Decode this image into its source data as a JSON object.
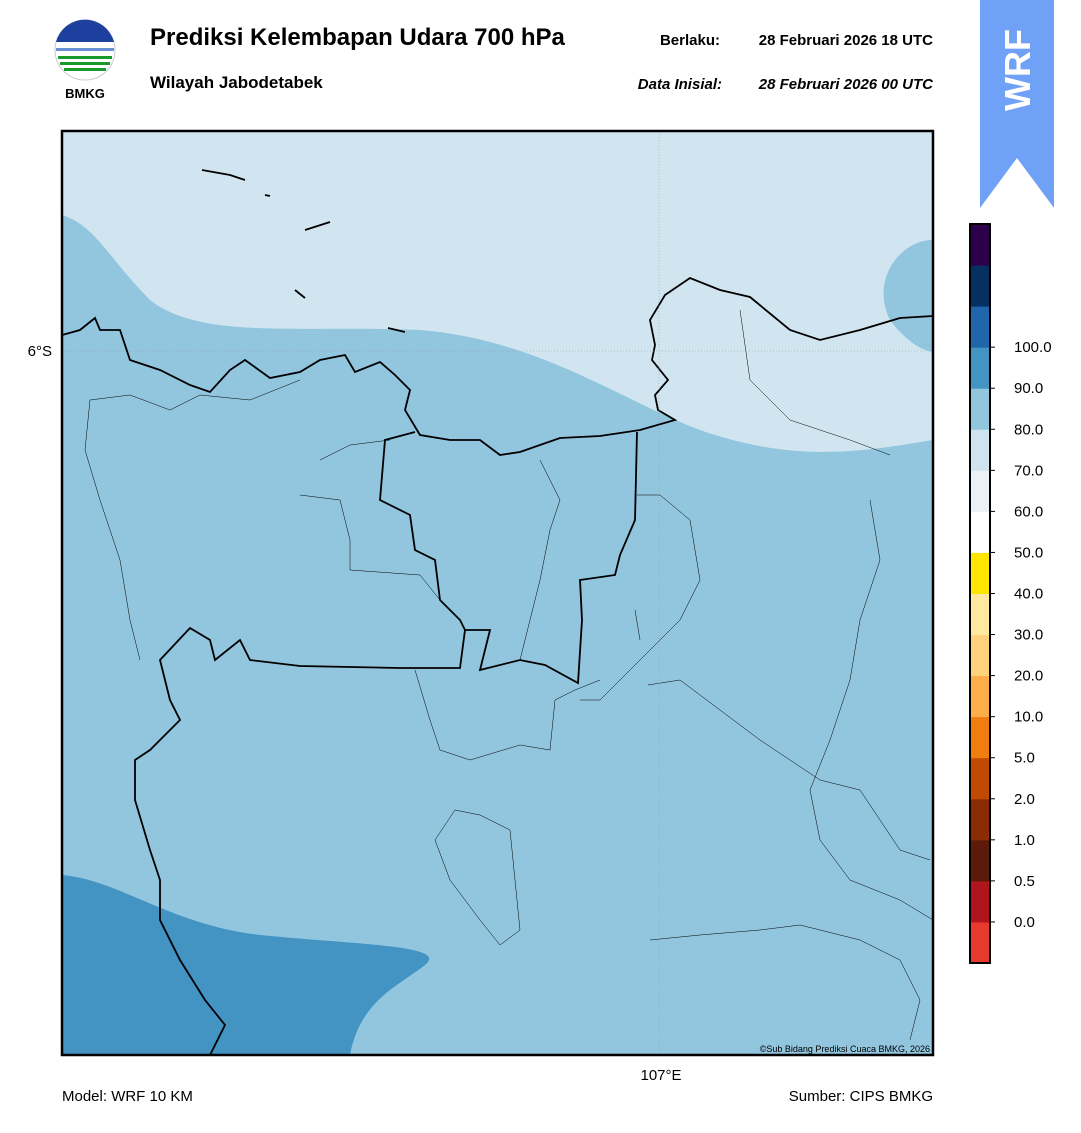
{
  "header": {
    "title": "Prediksi Kelembapan Udara 700 hPa",
    "subtitle": "Wilayah Jabodetabek",
    "valid_label": "Berlaku:",
    "valid": "28 Februari 2026 18 UTC",
    "init_label": "Data Inisial:",
    "init": "28 Februari 2026 00 UTC",
    "logo": "BMKG"
  },
  "badge": "WRF",
  "map": {
    "lat_label": "6°S",
    "lon_label": "107°E",
    "credit": "©Sub Bidang Prediksi Cuaca BMKG, 2026"
  },
  "colorbar": {
    "labels": [
      "0.0",
      "0.5",
      "1.0",
      "2.0",
      "5.0",
      "10.0",
      "20.0",
      "30.0",
      "40.0",
      "50.0",
      "60.0",
      "70.0",
      "80.0",
      "90.0",
      "100.0"
    ],
    "colors": [
      "#e8392f",
      "#b0141c",
      "#5c1a0a",
      "#8a2d05",
      "#c04a02",
      "#f07d10",
      "#fdae4b",
      "#fed27a",
      "#ffe9a0",
      "#ffe600",
      "#ffffff",
      "#eaf2f8",
      "#cfe3ef",
      "#92c5de",
      "#4393c3",
      "#2166ac",
      "#053061",
      "#2d004b"
    ]
  },
  "footer": {
    "model": "Model: WRF 10 KM",
    "source": "Sumber: CIPS BMKG"
  }
}
